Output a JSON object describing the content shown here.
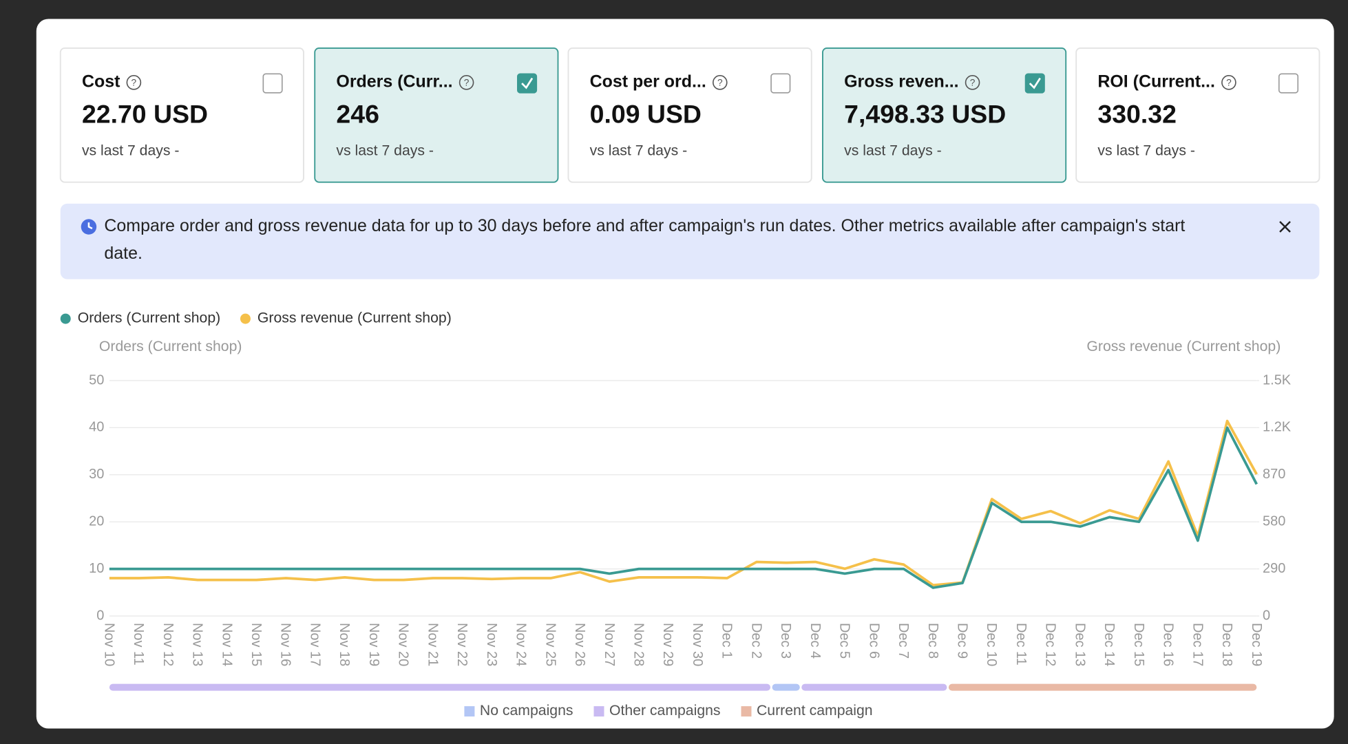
{
  "cards": [
    {
      "title": "Cost",
      "value": "22.70 USD",
      "subtitle": "vs last 7 days -",
      "checked": false
    },
    {
      "title": "Orders (Curr...",
      "value": "246",
      "subtitle": "vs last 7 days -",
      "checked": true
    },
    {
      "title": "Cost per ord...",
      "value": "0.09 USD",
      "subtitle": "vs last 7 days -",
      "checked": false
    },
    {
      "title": "Gross reven...",
      "value": "7,498.33 USD",
      "subtitle": "vs last 7 days -",
      "checked": true
    },
    {
      "title": "ROI (Current...",
      "value": "330.32",
      "subtitle": "vs last 7 days -",
      "checked": false
    }
  ],
  "banner": {
    "text_lines": [
      "Compare order and gross revenue data for up to 30 days before and after campaign's run dates. Other metrics available after campaign's start",
      "date."
    ]
  },
  "chart_data": {
    "type": "line",
    "y_label": "Orders (Current shop)",
    "y2_label": "Gross revenue (Current shop)",
    "categories": [
      "Nov 10",
      "Nov 11",
      "Nov 12",
      "Nov 13",
      "Nov 14",
      "Nov 15",
      "Nov 16",
      "Nov 17",
      "Nov 18",
      "Nov 19",
      "Nov 20",
      "Nov 21",
      "Nov 22",
      "Nov 23",
      "Nov 24",
      "Nov 25",
      "Nov 26",
      "Nov 27",
      "Nov 28",
      "Nov 29",
      "Nov 30",
      "Dec 1",
      "Dec 2",
      "Dec 3",
      "Dec 4",
      "Dec 5",
      "Dec 6",
      "Dec 7",
      "Dec 8",
      "Dec 9",
      "Dec 10",
      "Dec 11",
      "Dec 12",
      "Dec 13",
      "Dec 14",
      "Dec 15",
      "Dec 16",
      "Dec 17",
      "Dec 18",
      "Dec 19"
    ],
    "series": [
      {
        "name": "Orders (Current shop)",
        "color": "#3a9a92",
        "values": [
          10,
          10,
          10,
          10,
          10,
          10,
          10,
          10,
          10,
          10,
          10,
          10,
          10,
          10,
          10,
          10,
          10,
          9,
          10,
          10,
          10,
          10,
          10,
          10,
          10,
          9,
          10,
          10,
          6,
          7,
          24,
          20,
          20,
          19,
          21,
          20,
          31,
          16,
          40,
          28
        ]
      },
      {
        "name": "Gross revenue (Current shop)",
        "color": "#f5c04a",
        "axis": "y2",
        "values": [
          233,
          233,
          238,
          222,
          222,
          222,
          233,
          222,
          238,
          222,
          222,
          233,
          233,
          228,
          233,
          233,
          270,
          212,
          238,
          238,
          238,
          233,
          333,
          328,
          333,
          291,
          349,
          317,
          190,
          206,
          720,
          598,
          646,
          571,
          651,
          598,
          952,
          492,
          1201,
          873
        ]
      }
    ],
    "ylim": [
      0,
      50
    ],
    "yticks": [
      0,
      10,
      20,
      30,
      40,
      50
    ],
    "y2lim": [
      0,
      1450
    ],
    "y2ticks": [
      0,
      290,
      580,
      870,
      {
        "value": 1160,
        "label": "1.2K"
      },
      {
        "value": 1450,
        "label": "1.5K"
      }
    ],
    "grid": true,
    "campaign_legend": [
      {
        "name": "No campaigns",
        "color": "#b3c6f5"
      },
      {
        "name": "Other campaigns",
        "color": "#c9baf2"
      },
      {
        "name": "Current campaign",
        "color": "#e9b9a5"
      }
    ],
    "campaign_segments": [
      {
        "from": "Nov 10",
        "to": "Dec 2",
        "legend": 1
      },
      {
        "from": "Dec 3",
        "to": "Dec 3",
        "legend": 0
      },
      {
        "from": "Dec 4",
        "to": "Dec 8",
        "legend": 1
      },
      {
        "from": "Dec 9",
        "to": "Dec 19",
        "legend": 2
      }
    ]
  }
}
